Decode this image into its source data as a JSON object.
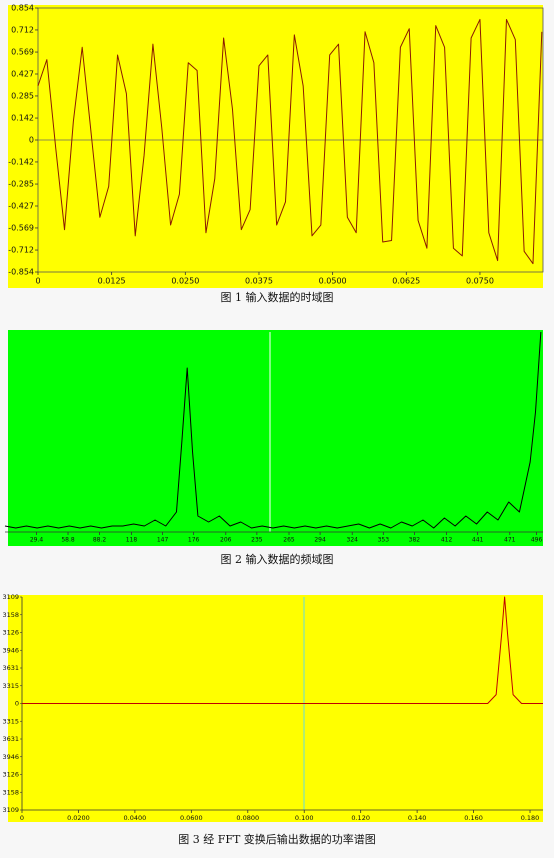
{
  "chart_data": [
    {
      "type": "line",
      "title": "图 1 输入数据的时域图",
      "background": "#ffff00",
      "color": "#8b1a00",
      "x": [
        0,
        0.0015,
        0.003,
        0.0045,
        0.006,
        0.0075,
        0.009,
        0.0105,
        0.012,
        0.0135,
        0.015,
        0.0165,
        0.018,
        0.0195,
        0.021,
        0.0225,
        0.024,
        0.0255,
        0.027,
        0.0285,
        0.03,
        0.0315,
        0.033,
        0.0345,
        0.036,
        0.0375,
        0.039,
        0.0405,
        0.042,
        0.0435,
        0.045,
        0.0465,
        0.048,
        0.0495,
        0.051,
        0.0525,
        0.054,
        0.0555,
        0.057,
        0.0585,
        0.06,
        0.0615,
        0.063,
        0.0645,
        0.066,
        0.0675,
        0.069,
        0.0705,
        0.072,
        0.0735,
        0.075,
        0.0765,
        0.078,
        0.0795,
        0.081,
        0.0825,
        0.084,
        0.0855
      ],
      "values": [
        0.35,
        0.52,
        -0.05,
        -0.58,
        0.12,
        0.6,
        0.05,
        -0.5,
        -0.3,
        0.55,
        0.3,
        -0.62,
        -0.1,
        0.62,
        0.08,
        -0.55,
        -0.35,
        0.5,
        0.45,
        -0.6,
        -0.25,
        0.66,
        0.2,
        -0.58,
        -0.45,
        0.48,
        0.55,
        -0.55,
        -0.4,
        0.68,
        0.35,
        -0.62,
        -0.55,
        0.55,
        0.62,
        -0.5,
        -0.6,
        0.7,
        0.5,
        -0.66,
        -0.65,
        0.6,
        0.72,
        -0.52,
        -0.7,
        0.74,
        0.6,
        -0.7,
        -0.75,
        0.66,
        0.78,
        -0.6,
        -0.78,
        0.78,
        0.65,
        -0.72,
        -0.8,
        0.7
      ],
      "xlim": [
        0,
        0.0857
      ],
      "ylim": [
        -0.854,
        0.854
      ],
      "xticks": [
        0,
        0.0125,
        {
          "value": 0.025,
          "label": "0.0250"
        },
        0.0375,
        {
          "value": 0.05,
          "label": "0.0500"
        },
        0.0625,
        {
          "value": 0.075,
          "label": "0.0750"
        }
      ],
      "yticks": [
        0.854,
        0.712,
        0.569,
        0.427,
        0.285,
        0.142,
        0,
        -0.142,
        -0.285,
        -0.427,
        -0.569,
        -0.712,
        -0.854
      ]
    },
    {
      "type": "line",
      "title": "图 2 输入数据的频域图",
      "background": "#00ff00",
      "color": "#000000",
      "x": [
        0,
        10,
        20,
        30,
        40,
        50,
        60,
        70,
        80,
        90,
        100,
        110,
        120,
        130,
        140,
        150,
        160,
        165,
        170,
        175,
        180,
        190,
        200,
        210,
        220,
        230,
        240,
        250,
        260,
        270,
        280,
        290,
        300,
        310,
        320,
        330,
        340,
        350,
        360,
        370,
        380,
        390,
        400,
        410,
        420,
        430,
        440,
        450,
        460,
        470,
        480,
        490,
        495,
        500
      ],
      "values": [
        0.03,
        0.02,
        0.03,
        0.02,
        0.03,
        0.02,
        0.03,
        0.02,
        0.03,
        0.02,
        0.03,
        0.03,
        0.04,
        0.03,
        0.06,
        0.03,
        0.1,
        0.45,
        0.82,
        0.4,
        0.08,
        0.05,
        0.08,
        0.03,
        0.05,
        0.02,
        0.03,
        0.02,
        0.03,
        0.02,
        0.03,
        0.02,
        0.03,
        0.02,
        0.03,
        0.04,
        0.02,
        0.04,
        0.02,
        0.05,
        0.03,
        0.06,
        0.02,
        0.07,
        0.03,
        0.08,
        0.04,
        0.1,
        0.06,
        0.15,
        0.1,
        0.35,
        0.6,
        1.0
      ],
      "xlim": [
        0,
        502
      ],
      "ylim": [
        0,
        1
      ],
      "xticks": [
        29.4,
        58.8,
        88.2,
        118,
        147,
        176,
        206,
        235,
        265,
        294,
        324,
        353,
        382,
        412,
        441,
        471,
        496
      ]
    },
    {
      "type": "line",
      "title": "图 3 经 FFT 变换后输出数据的功率谱图",
      "background": "#ffff00",
      "color": "#c00000",
      "x": [
        0,
        0.165,
        0.168,
        0.17,
        0.171,
        0.172,
        0.174,
        0.177,
        0.1846
      ],
      "values": [
        0,
        0,
        0.5,
        4,
        6,
        4,
        0.5,
        0,
        0
      ],
      "xlim": [
        0,
        0.1846
      ],
      "ylim": [
        -6,
        6
      ],
      "xticks": [
        0,
        {
          "value": 0.02,
          "label": "0.0200"
        },
        {
          "value": 0.04,
          "label": "0.0400"
        },
        {
          "value": 0.06,
          "label": "0.0600"
        },
        {
          "value": 0.08,
          "label": "0.0800"
        },
        {
          "value": 0.1,
          "label": "0.100"
        },
        {
          "value": 0.12,
          "label": "0.120"
        },
        {
          "value": 0.14,
          "label": "0.140"
        },
        {
          "value": 0.16,
          "label": "0.160"
        },
        {
          "value": 0.18,
          "label": "0.180"
        }
      ],
      "ytick_labels": [
        "3109",
        "3158",
        "3126",
        "3946",
        "3631",
        "3315",
        "0",
        "3315",
        "3631",
        "3946",
        "3126",
        "3158",
        "3109"
      ]
    }
  ]
}
